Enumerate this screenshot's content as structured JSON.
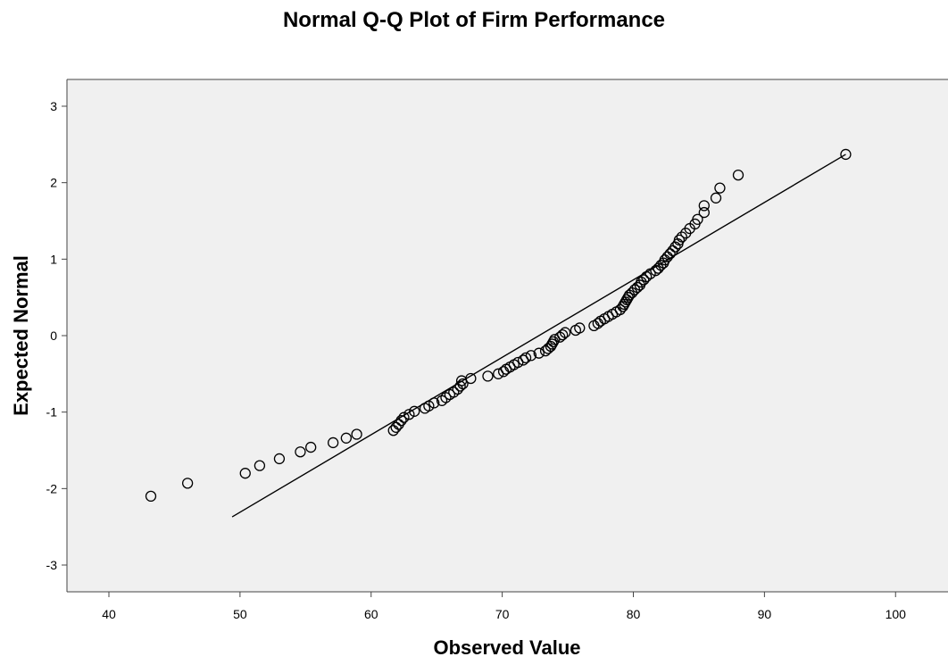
{
  "chart_data": {
    "type": "scatter",
    "title": "Normal Q-Q Plot of Firm Performance",
    "xlabel": "Observed Value",
    "ylabel": "Expected Normal",
    "xlim": [
      36.8,
      104
    ],
    "ylim": [
      -3.35,
      3.35
    ],
    "x_ticks": [
      40,
      50,
      60,
      70,
      80,
      90,
      100
    ],
    "y_ticks": [
      3,
      2,
      1,
      0,
      -1,
      -2,
      -3
    ],
    "grid": false,
    "background": "#f0f0f0",
    "marker": "open-circle",
    "reference_line": {
      "x": [
        49.4,
        96.2
      ],
      "y": [
        -2.37,
        2.37
      ]
    },
    "points": [
      [
        43.2,
        -2.1
      ],
      [
        46.0,
        -1.93
      ],
      [
        50.4,
        -1.8
      ],
      [
        51.5,
        -1.7
      ],
      [
        53.0,
        -1.61
      ],
      [
        54.6,
        -1.52
      ],
      [
        55.4,
        -1.46
      ],
      [
        57.1,
        -1.4
      ],
      [
        58.1,
        -1.34
      ],
      [
        58.9,
        -1.29
      ],
      [
        61.7,
        -1.24
      ],
      [
        61.9,
        -1.2
      ],
      [
        62.1,
        -1.16
      ],
      [
        62.3,
        -1.11
      ],
      [
        62.5,
        -1.07
      ],
      [
        62.9,
        -1.03
      ],
      [
        63.3,
        -0.99
      ],
      [
        64.1,
        -0.95
      ],
      [
        64.4,
        -0.92
      ],
      [
        64.8,
        -0.88
      ],
      [
        65.4,
        -0.85
      ],
      [
        65.7,
        -0.81
      ],
      [
        66.0,
        -0.77
      ],
      [
        66.3,
        -0.74
      ],
      [
        66.6,
        -0.7
      ],
      [
        66.8,
        -0.66
      ],
      [
        67.0,
        -0.63
      ],
      [
        66.9,
        -0.59
      ],
      [
        67.6,
        -0.56
      ],
      [
        68.9,
        -0.53
      ],
      [
        69.7,
        -0.5
      ],
      [
        70.1,
        -0.47
      ],
      [
        70.3,
        -0.44
      ],
      [
        70.6,
        -0.41
      ],
      [
        70.9,
        -0.38
      ],
      [
        71.2,
        -0.35
      ],
      [
        71.6,
        -0.32
      ],
      [
        71.8,
        -0.29
      ],
      [
        72.2,
        -0.26
      ],
      [
        72.8,
        -0.23
      ],
      [
        73.3,
        -0.2
      ],
      [
        73.5,
        -0.17
      ],
      [
        73.7,
        -0.14
      ],
      [
        73.8,
        -0.11
      ],
      [
        73.9,
        -0.08
      ],
      [
        74.0,
        -0.05
      ],
      [
        74.4,
        -0.02
      ],
      [
        74.6,
        0.01
      ],
      [
        74.8,
        0.04
      ],
      [
        75.6,
        0.07
      ],
      [
        75.9,
        0.1
      ],
      [
        77.0,
        0.13
      ],
      [
        77.3,
        0.16
      ],
      [
        77.5,
        0.19
      ],
      [
        77.8,
        0.22
      ],
      [
        78.1,
        0.25
      ],
      [
        78.4,
        0.28
      ],
      [
        78.7,
        0.31
      ],
      [
        79.0,
        0.34
      ],
      [
        79.2,
        0.38
      ],
      [
        79.3,
        0.41
      ],
      [
        79.4,
        0.44
      ],
      [
        79.5,
        0.47
      ],
      [
        79.6,
        0.5
      ],
      [
        79.7,
        0.53
      ],
      [
        79.9,
        0.56
      ],
      [
        80.1,
        0.6
      ],
      [
        80.3,
        0.63
      ],
      [
        80.5,
        0.66
      ],
      [
        80.6,
        0.7
      ],
      [
        80.8,
        0.73
      ],
      [
        81.0,
        0.77
      ],
      [
        81.3,
        0.81
      ],
      [
        81.7,
        0.85
      ],
      [
        81.9,
        0.88
      ],
      [
        82.1,
        0.92
      ],
      [
        82.3,
        0.95
      ],
      [
        82.4,
        0.99
      ],
      [
        82.6,
        1.03
      ],
      [
        82.8,
        1.07
      ],
      [
        83.0,
        1.11
      ],
      [
        83.2,
        1.16
      ],
      [
        83.4,
        1.2
      ],
      [
        83.5,
        1.25
      ],
      [
        83.7,
        1.29
      ],
      [
        84.0,
        1.34
      ],
      [
        84.3,
        1.4
      ],
      [
        84.7,
        1.46
      ],
      [
        84.9,
        1.52
      ],
      [
        85.4,
        1.61
      ],
      [
        85.4,
        1.7
      ],
      [
        86.3,
        1.8
      ],
      [
        86.6,
        1.93
      ],
      [
        88.0,
        2.1
      ],
      [
        96.2,
        2.37
      ]
    ]
  }
}
